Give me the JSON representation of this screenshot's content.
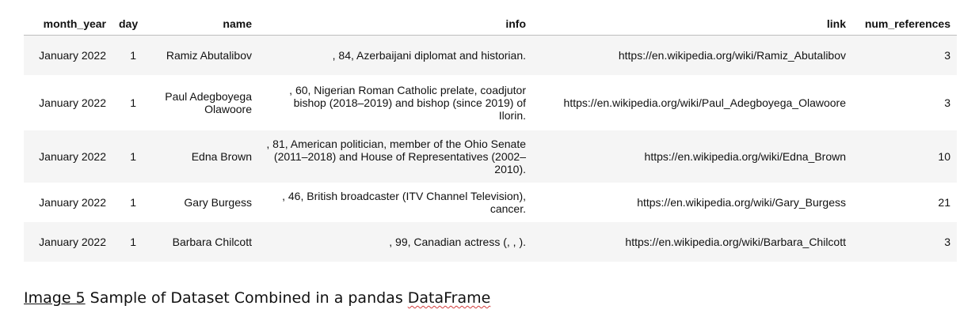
{
  "table": {
    "columns": [
      "month_year",
      "day",
      "name",
      "info",
      "link",
      "num_references"
    ],
    "rows": [
      {
        "month_year": "January 2022",
        "day": "1",
        "name": "Ramiz Abutalibov",
        "info": ", 84, Azerbaijani diplomat and historian.",
        "link": "https://en.wikipedia.org/wiki/Ramiz_Abutalibov",
        "num_references": "3"
      },
      {
        "month_year": "January 2022",
        "day": "1",
        "name": "Paul Adegboyega Olawoore",
        "info": ", 60, Nigerian Roman Catholic prelate, coadjutor bishop (2018–2019) and bishop (since 2019) of Ilorin.",
        "link": "https://en.wikipedia.org/wiki/Paul_Adegboyega_Olawoore",
        "num_references": "3"
      },
      {
        "month_year": "January 2022",
        "day": "1",
        "name": "Edna Brown",
        "info": ", 81, American politician, member of the Ohio Senate (2011–2018) and House of Representatives (2002–2010).",
        "link": "https://en.wikipedia.org/wiki/Edna_Brown",
        "num_references": "10"
      },
      {
        "month_year": "January 2022",
        "day": "1",
        "name": "Gary Burgess",
        "info": ", 46, British broadcaster (ITV Channel Television), cancer.",
        "link": "https://en.wikipedia.org/wiki/Gary_Burgess",
        "num_references": "21"
      },
      {
        "month_year": "January 2022",
        "day": "1",
        "name": "Barbara Chilcott",
        "info": ", 99, Canadian actress (, , ).",
        "link": "https://en.wikipedia.org/wiki/Barbara_Chilcott",
        "num_references": "3"
      }
    ]
  },
  "caption": {
    "label": "Image 5",
    "text": " Sample of Dataset Combined in a pandas ",
    "flagged": "DataFrame"
  }
}
